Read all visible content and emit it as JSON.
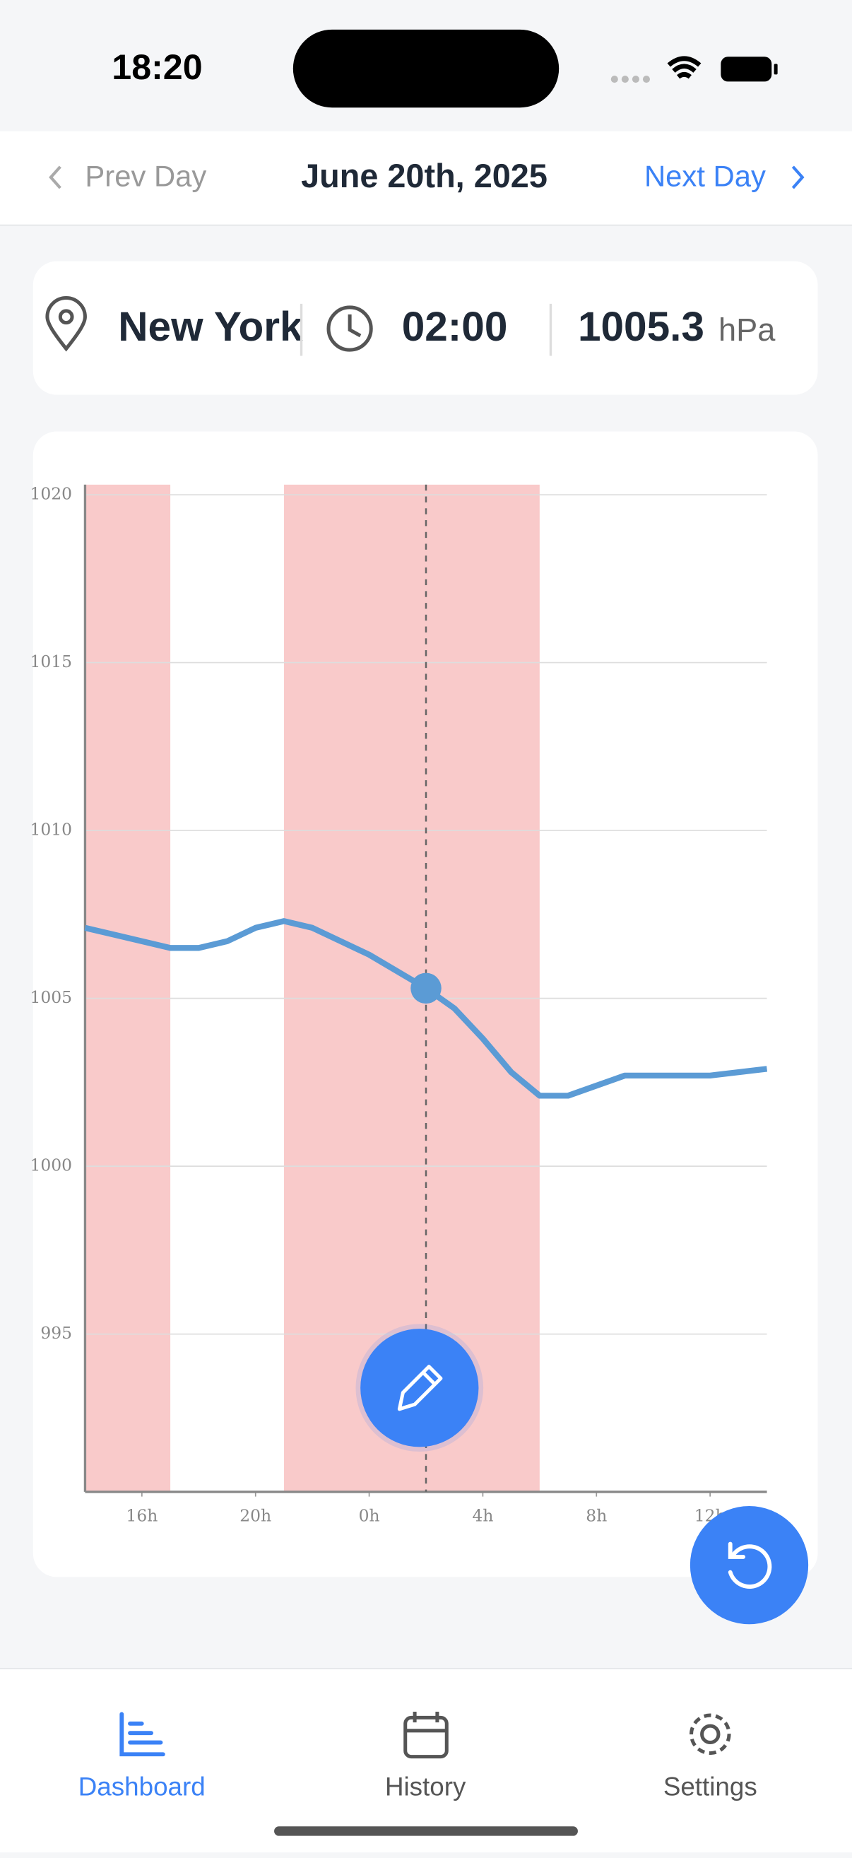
{
  "status_bar": {
    "time": "18:20"
  },
  "nav": {
    "prev": "Prev Day",
    "date": "June 20th, 2025",
    "next": "Next Day"
  },
  "info": {
    "location": "New York",
    "time": "02:00",
    "pressure": "1005.3",
    "unit": "hPa"
  },
  "chart_data": {
    "type": "line",
    "x": [
      -10,
      -9,
      -8,
      -7,
      -6,
      -5,
      -4,
      -3,
      -2,
      -1,
      0,
      1,
      2,
      3,
      4,
      5,
      6,
      7,
      8,
      9,
      10,
      11,
      12,
      13,
      14
    ],
    "values": [
      1007.1,
      1006.9,
      1006.7,
      1006.5,
      1006.5,
      1006.7,
      1007.1,
      1007.3,
      1007.1,
      1006.7,
      1006.3,
      1005.8,
      1005.3,
      1004.7,
      1003.8,
      1002.8,
      1002.1,
      1002.1,
      1002.4,
      1002.7,
      1002.7,
      1002.7,
      1002.7,
      1002.8,
      1002.9
    ],
    "color": "#5b9bd5",
    "xlim": [
      -10,
      14
    ],
    "xticks": [
      {
        "value": -8,
        "label": "16h"
      },
      {
        "value": -4,
        "label": "20h"
      },
      {
        "value": 0,
        "label": "0h"
      },
      {
        "value": 4,
        "label": "4h"
      },
      {
        "value": 8,
        "label": "8h"
      },
      {
        "value": 12,
        "label": "12h"
      }
    ],
    "ylim": [
      990.3,
      1020.3
    ],
    "yticks": [
      995,
      1000,
      1005,
      1010,
      1015,
      1020
    ],
    "grid": true,
    "bands": [
      [
        -10,
        -7
      ],
      [
        -3,
        6
      ]
    ],
    "band_color": "#f9caca",
    "marker_x": 2
  },
  "tabs": [
    {
      "label": "Dashboard"
    },
    {
      "label": "History"
    },
    {
      "label": "Settings"
    }
  ]
}
